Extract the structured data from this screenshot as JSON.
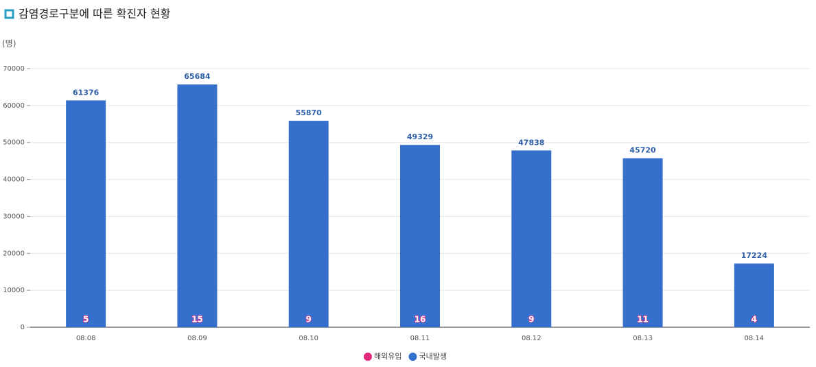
{
  "chart_data": {
    "type": "stacked_bar",
    "title": "감염경로구분에 따른 확진자 현황",
    "y_axis_label": "(명)",
    "categories": [
      "08.08",
      "08.09",
      "08.10",
      "08.11",
      "08.12",
      "08.13",
      "08.14"
    ],
    "series": [
      {
        "name": "해외유입",
        "color": "#e0287a",
        "values": [
          5,
          15,
          9,
          16,
          9,
          11,
          4
        ]
      },
      {
        "name": "국내발생",
        "color": "#3571cc",
        "values": [
          61376,
          65684,
          55870,
          49329,
          47838,
          45720,
          17224
        ]
      }
    ],
    "ylim": [
      0,
      70000
    ],
    "yticks": [
      0,
      10000,
      20000,
      30000,
      40000,
      50000,
      60000,
      70000
    ],
    "grid": true,
    "legend": "bottom"
  }
}
